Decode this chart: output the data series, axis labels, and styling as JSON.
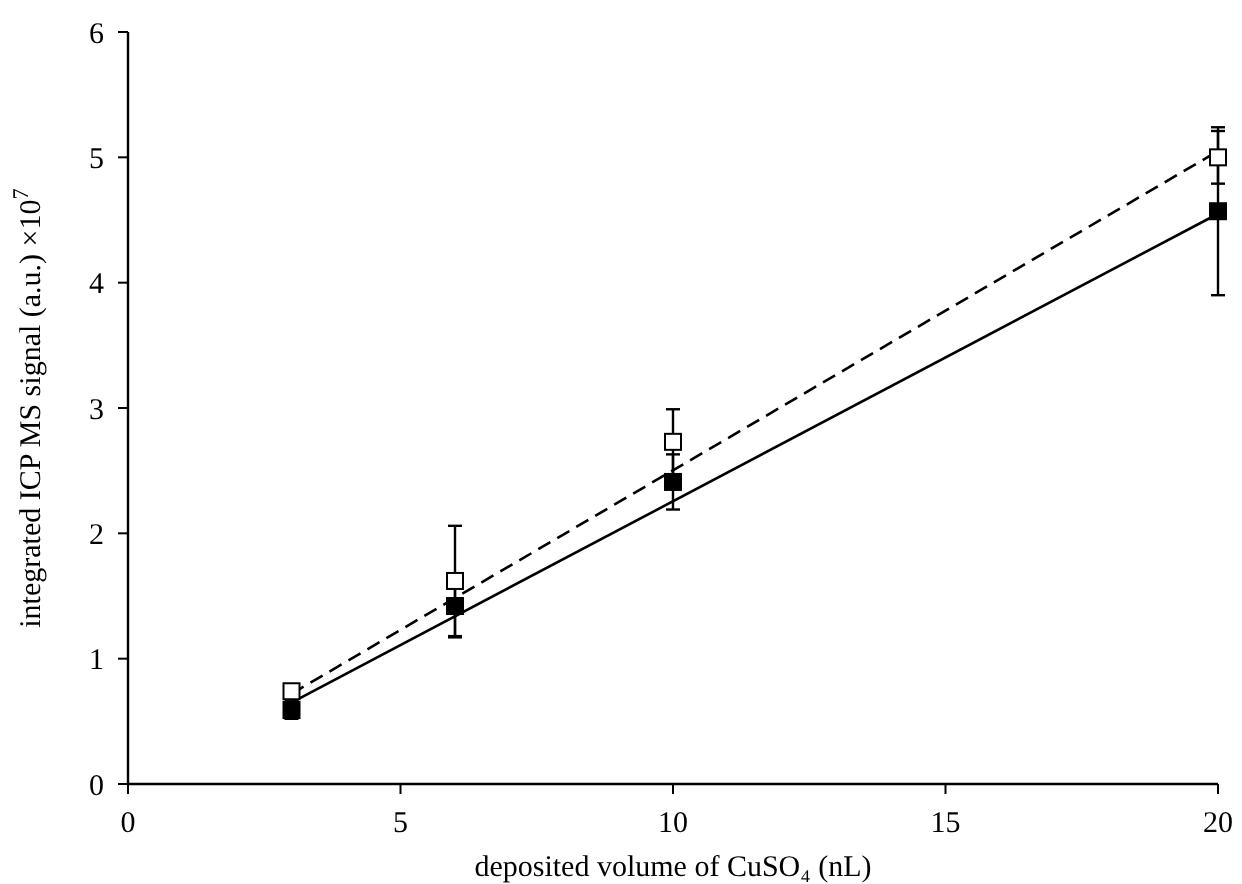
{
  "chart_data": {
    "type": "scatter",
    "xlabel": "deposited volume of CuSO₄ (nL)",
    "ylabel": "integrated ICP MS signal (a.u.) ×10$^{7}$",
    "xlim": [
      0,
      20
    ],
    "xticks": [
      0,
      5,
      10,
      15,
      20
    ],
    "ylim": [
      0,
      6
    ],
    "yticks": [
      0,
      1,
      2,
      3,
      4,
      5,
      6
    ],
    "grid": false,
    "series": [
      {
        "type": "line",
        "color": "#000000",
        "marker": "none",
        "line_style": "solid",
        "x": [
          3,
          20
        ],
        "values": [
          0.65,
          4.55
        ]
      },
      {
        "type": "line",
        "color": "#000000",
        "marker": "none",
        "line_style": "dashed",
        "x": [
          3,
          20
        ],
        "values": [
          0.72,
          5.05
        ]
      },
      {
        "color": "#000000",
        "marker": "square",
        "x": [
          3,
          6,
          10,
          20
        ],
        "values": [
          0.59,
          1.42,
          2.41,
          4.57
        ],
        "errors": [
          0.07,
          0.25,
          0.22,
          0.67
        ]
      },
      {
        "color": "#ffffff",
        "marker": "square",
        "x": [
          3,
          6,
          10,
          20
        ],
        "values": [
          0.74,
          1.62,
          2.73,
          5.0
        ],
        "errors": [
          0.05,
          0.44,
          0.26,
          0.21
        ]
      }
    ]
  }
}
